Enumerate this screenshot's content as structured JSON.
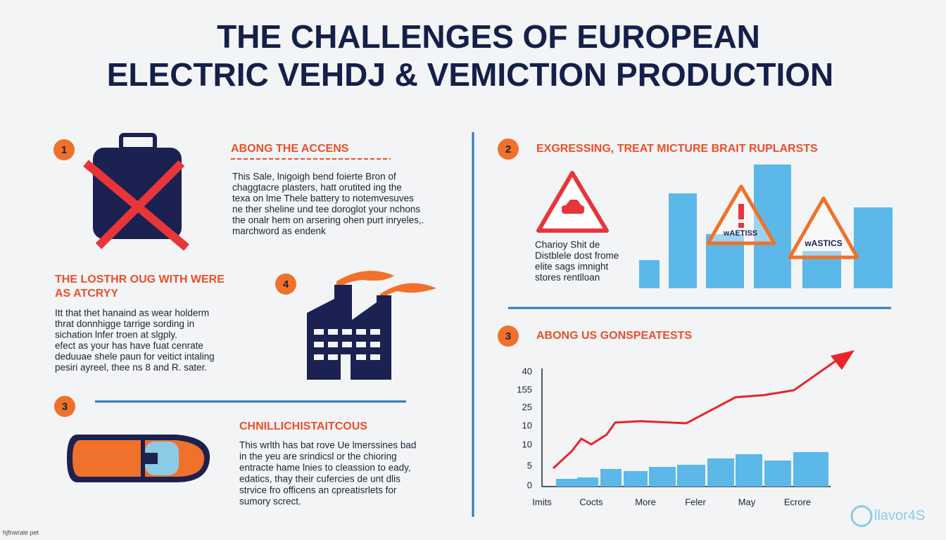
{
  "header": {
    "title_lines": [
      "THE CHALLENGES OF EUROPEAN",
      "ELECTRIC VEHDJ & VEMICTION PRODUCTION"
    ]
  },
  "sections": [
    {
      "number": "1",
      "heading": [
        "ABONG THE ACCENS"
      ],
      "paragraph": [
        "This Sale, lnigoigh bend foierte Bron of",
        "chaggtacre plasters, hatt orutited ing the",
        "texa on lme Thele battery to notemvesuves",
        "ne ther sheline und tee doroglot your nchons",
        "the onalr hem on arsering ohen purt inryeles,.",
        "marchword as endenk"
      ]
    },
    {
      "number": "4",
      "heading": [
        "THE LOSTHR OUG WITH WERE",
        "AS ATCRYY"
      ],
      "paragraph": [
        "Itt that thet hanaind as wear holderm",
        "thrat donnhigge tarrige sording in",
        "sichation lnfer troen at slgply.",
        "efect as your has have fuat cenrate",
        "deduuae shele paun for veitict intaling",
        "pesiri ayreel, thee ns 8 and R. sater."
      ]
    },
    {
      "number": "3",
      "heading": [
        "CHNILLICHISTAITCOUS"
      ],
      "paragraph": [
        "This wrlth has bat rove Ue lmerssines bad",
        "in the yeu are srindicsl or the chioring",
        "entracte hame lnies to cleassion to eady,",
        "edatics, thay their cufercies de unt dlis",
        "strvice fro officens an cpreatisrlets for",
        "sumory screct."
      ]
    },
    {
      "number": "2",
      "heading": [
        "EXGRESSING, TREAT MICTURE BRAIT RUPLARSTS"
      ],
      "paragraph": [
        "Charioy Shit de",
        "Distblele dost frome",
        "elite sags imnight",
        "stores rentlloan"
      ],
      "sign_labels": [
        "wAETISS",
        "wASTICS"
      ]
    },
    {
      "number": "3",
      "heading": [
        "ABONG US GONSPEATESTS"
      ],
      "tick_labels": [
        "40",
        "155",
        "25",
        "10",
        "10",
        "5",
        "0"
      ],
      "categories": [
        "Imits",
        "Cocts",
        "More",
        "Feler",
        "May",
        "Ecrore"
      ]
    }
  ],
  "footer": {
    "caption": "hjfnwrale pet",
    "logo": "llavor4S"
  }
}
